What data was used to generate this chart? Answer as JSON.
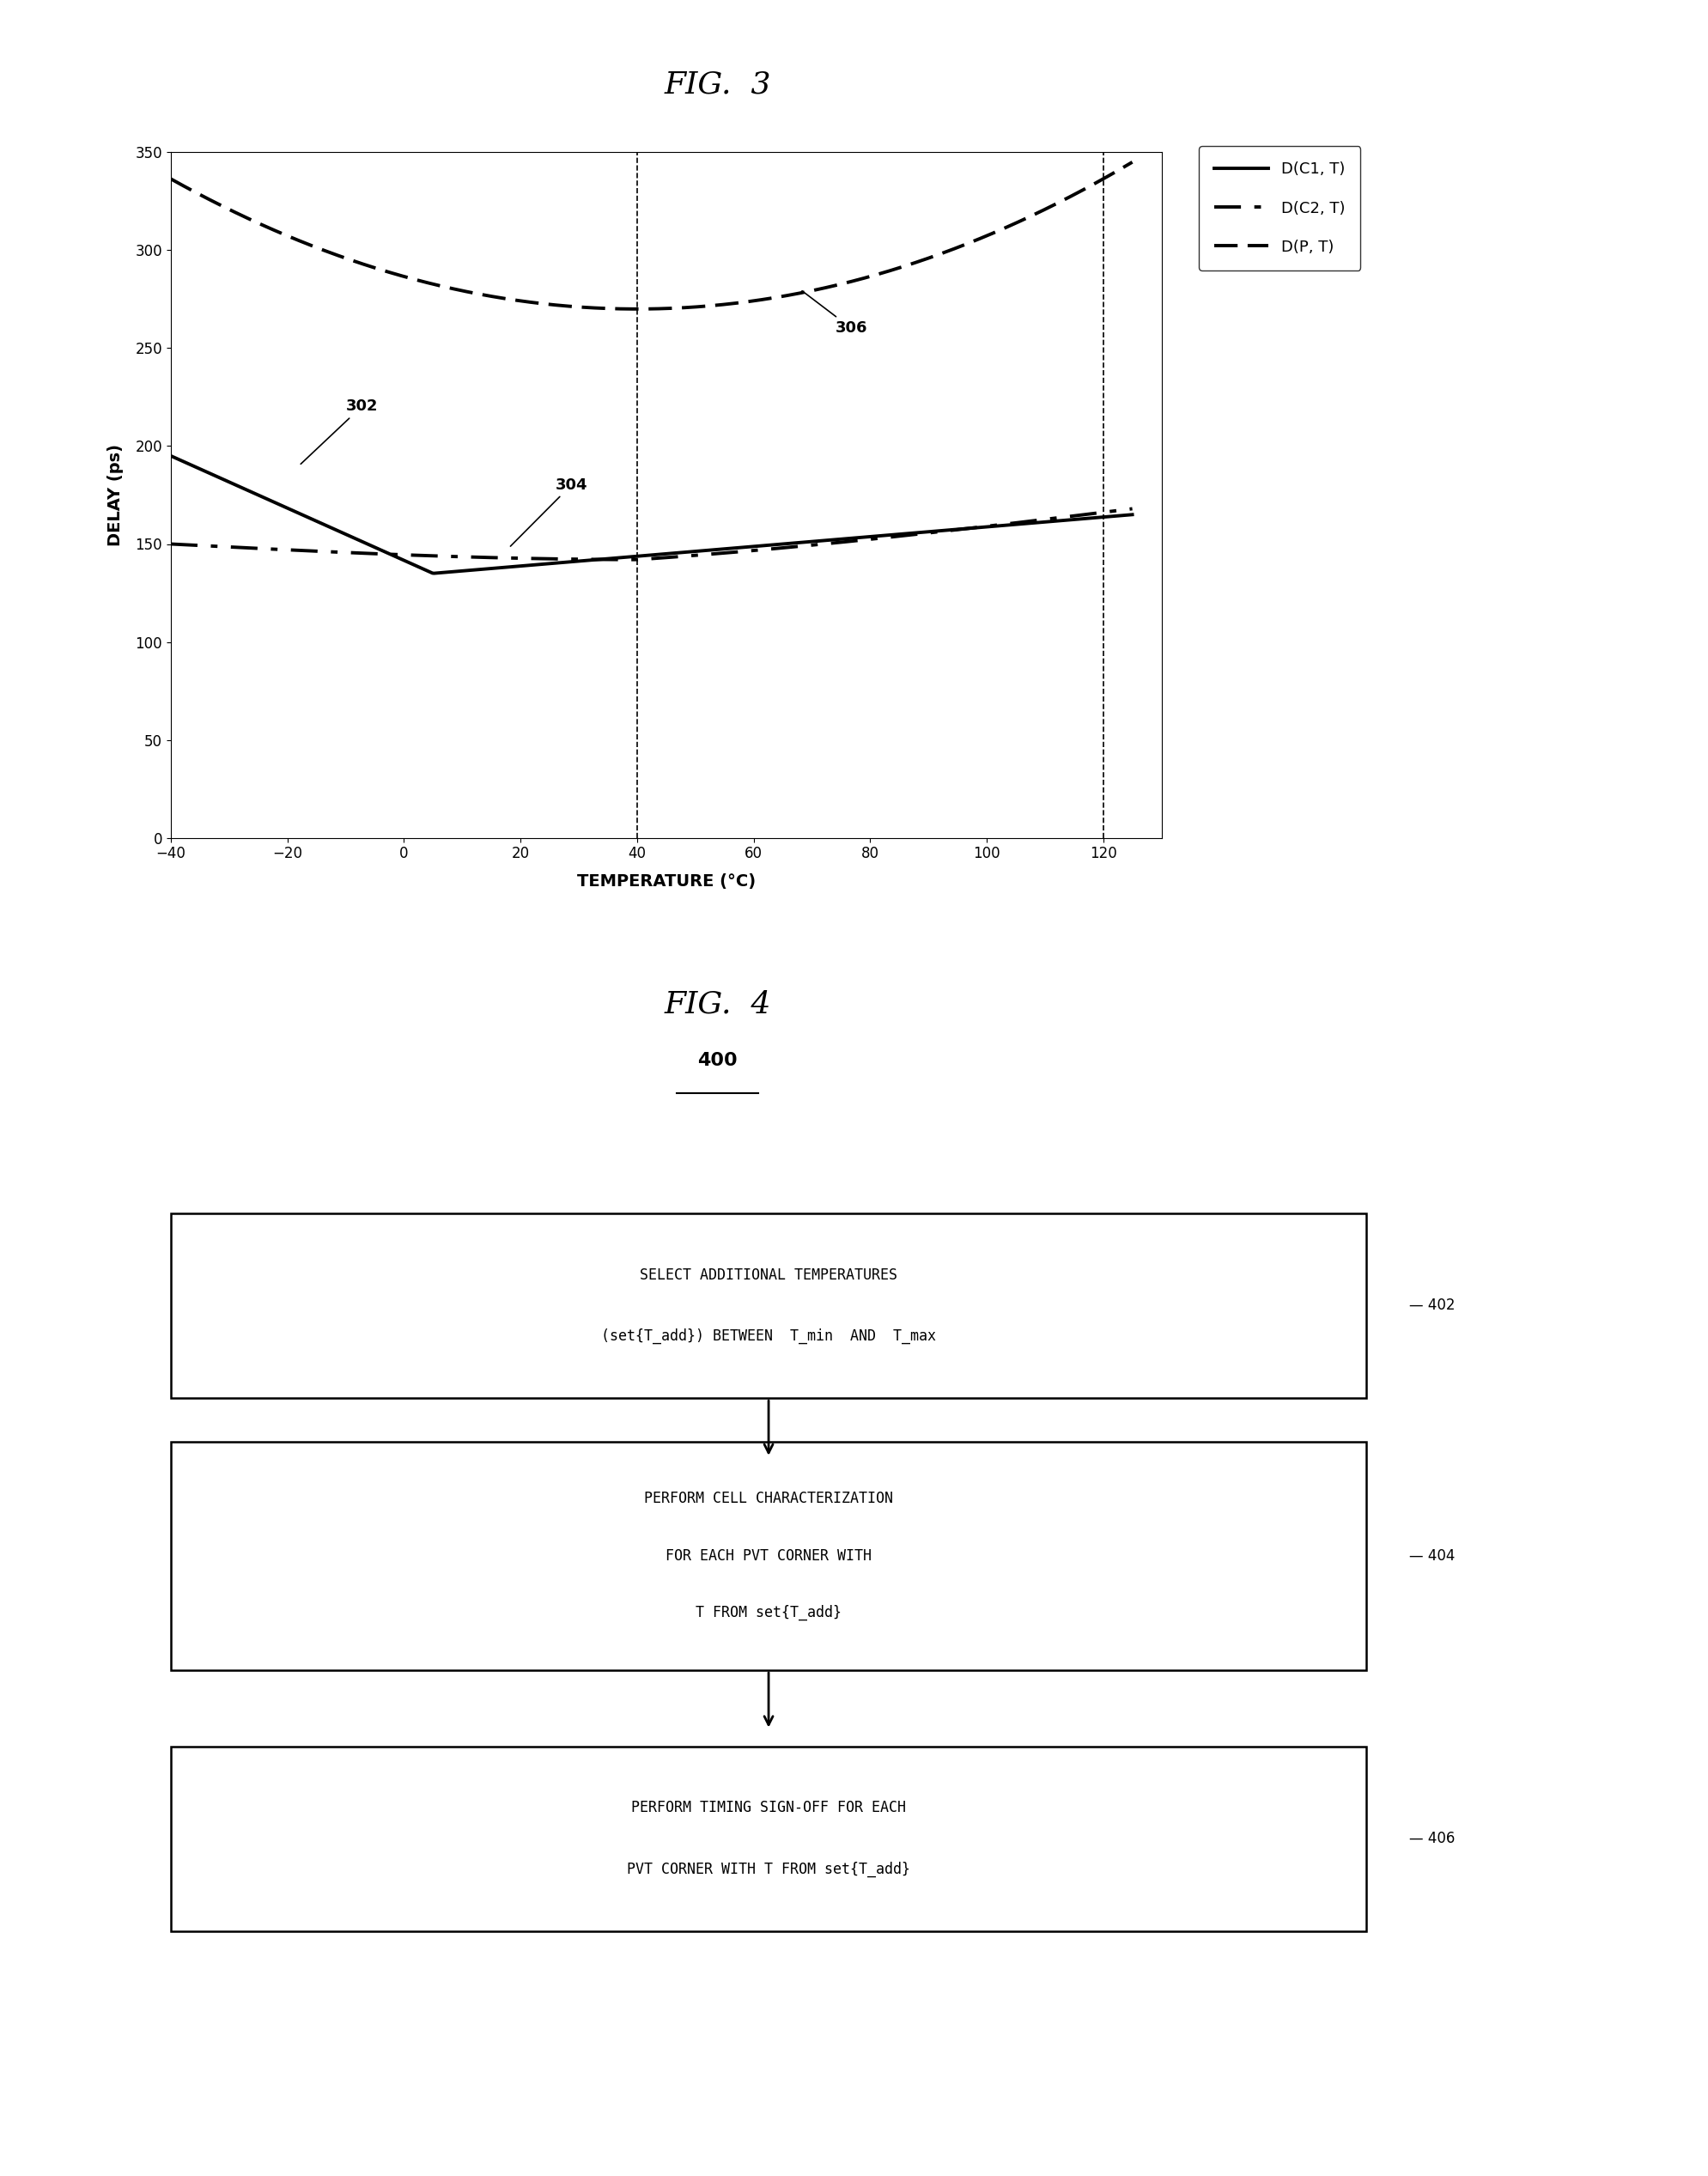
{
  "fig3_title": "FIG.  3",
  "fig4_title": "FIG.  4",
  "fig3_xlabel": "TEMPERATURE (°C)",
  "fig3_ylabel": "DELAY (ps)",
  "fig3_xlim": [
    -40,
    130
  ],
  "fig3_ylim": [
    0,
    350
  ],
  "fig3_yticks": [
    0,
    50,
    100,
    150,
    200,
    250,
    300,
    350
  ],
  "fig3_xticks": [
    -40,
    -20,
    0,
    20,
    40,
    60,
    80,
    100,
    120
  ],
  "fig3_vlines": [
    -40,
    40,
    120
  ],
  "legend_labels": [
    "D(C1, T)",
    "D(C2, T)",
    "D(P, T)"
  ],
  "label_302": "302",
  "label_304": "304",
  "label_306": "306",
  "label_400": "400",
  "label_402": "402",
  "label_404": "404",
  "label_406": "406",
  "box1_lines": [
    "SELECT ADDITIONAL TEMPERATURES",
    "(set{T_add}) BETWEEN  T_min  AND  T_max"
  ],
  "box2_lines": [
    "PERFORM CELL CHARACTERIZATION",
    "FOR EACH PVT CORNER WITH",
    "T FROM set{T_add}"
  ],
  "box3_lines": [
    "PERFORM TIMING SIGN-OFF FOR EACH",
    "PVT CORNER WITH T FROM set{T_add}"
  ],
  "background_color": "#ffffff",
  "line_color": "#000000"
}
